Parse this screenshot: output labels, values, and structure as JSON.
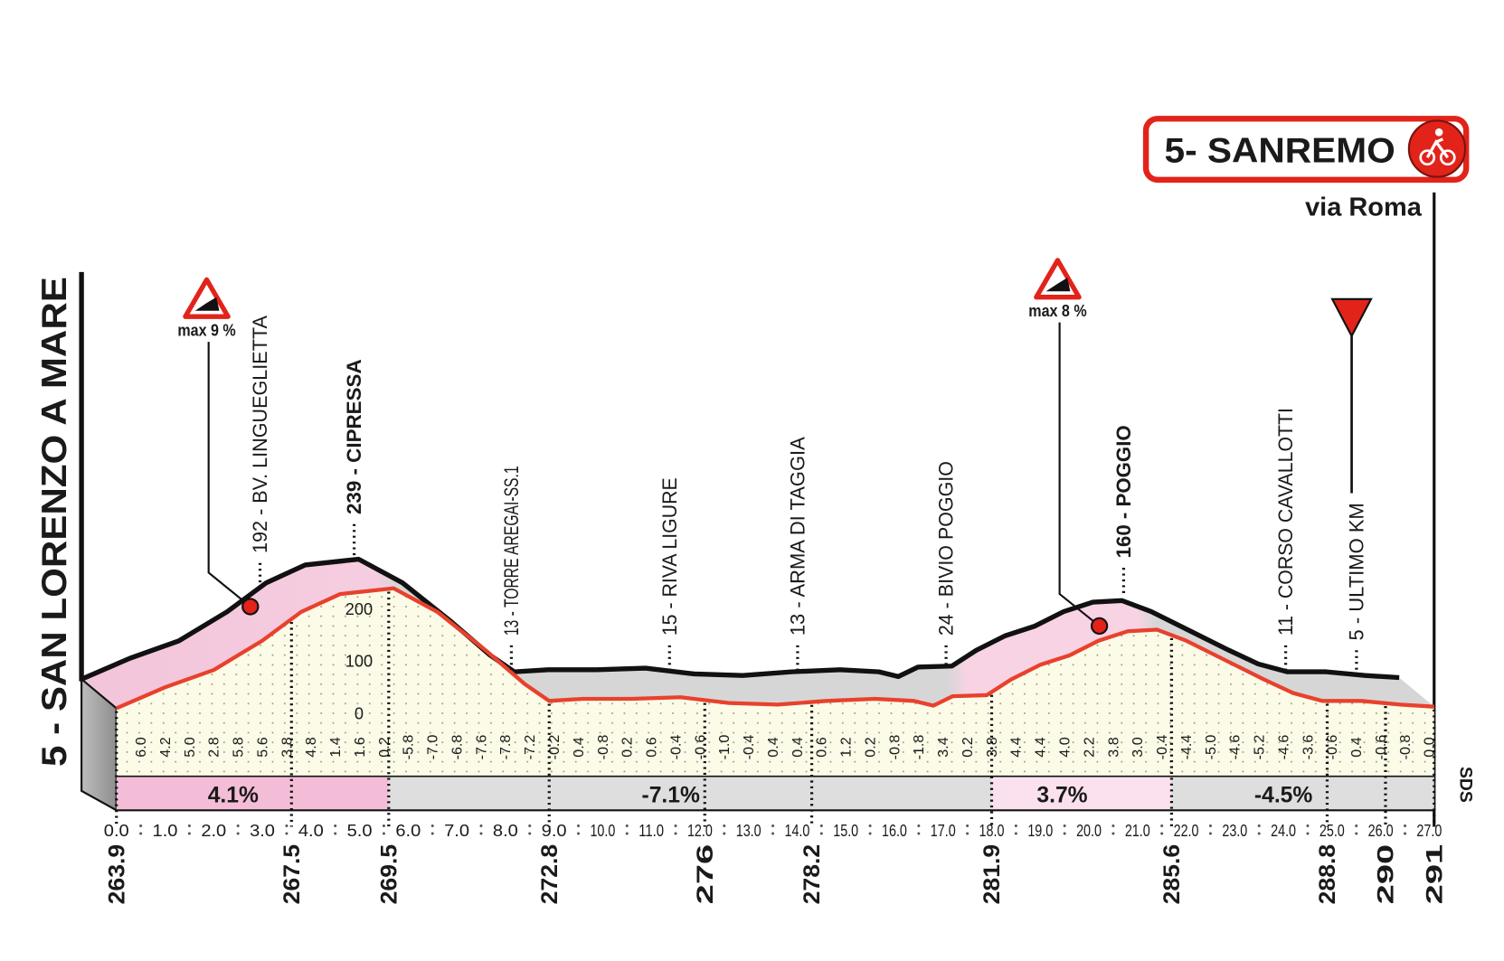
{
  "chart_data": {
    "type": "area",
    "start": "5 - SAN LORENZO A MARE",
    "finish": "5- SANREMO",
    "finish_street": "via Roma",
    "credit": "SDS",
    "x": [
      263.9,
      264.9,
      265.9,
      266.9,
      267.7,
      268.5,
      269.6,
      270.5,
      271.5,
      272.3,
      272.8,
      273.5,
      274.5,
      275.5,
      276.5,
      277.5,
      278.5,
      279.5,
      280.3,
      280.7,
      281.1,
      281.8,
      282.3,
      282.9,
      283.5,
      284.1,
      284.7,
      285.3,
      285.9,
      286.7,
      287.5,
      288.1,
      288.7,
      289.5,
      290.3,
      291.0
    ],
    "values": [
      10,
      50,
      83,
      139,
      194,
      228,
      239,
      194,
      120,
      56,
      24,
      28,
      28,
      31,
      20,
      17,
      24,
      28,
      24,
      15,
      33,
      35,
      65,
      93,
      111,
      139,
      157,
      160,
      139,
      102,
      65,
      39,
      24,
      24,
      17,
      13
    ],
    "line_color": "#e8412c",
    "edge_color": "#111111",
    "xlim": [
      263.9,
      291.0
    ],
    "ylim": [
      -120,
      240
    ],
    "yticks": [
      0,
      100,
      200
    ],
    "xticks": [
      263.9,
      267.5,
      269.5,
      272.8,
      276.0,
      278.2,
      281.9,
      285.6,
      288.8,
      290.0,
      291.0
    ],
    "section_ticks": [
      {
        "value": 263.9,
        "label": "0.0"
      },
      {
        "value": 264.9,
        "label": "1.0"
      },
      {
        "value": 265.9,
        "label": "2.0"
      },
      {
        "value": 266.9,
        "label": "3.0"
      },
      {
        "value": 267.9,
        "label": "4.0"
      },
      {
        "value": 268.9,
        "label": "5.0"
      },
      {
        "value": 269.9,
        "label": "6.0"
      },
      {
        "value": 270.9,
        "label": "7.0"
      },
      {
        "value": 271.9,
        "label": "8.0"
      },
      {
        "value": 272.9,
        "label": "9.0"
      },
      {
        "value": 273.9,
        "label": "10.0"
      },
      {
        "value": 274.9,
        "label": "11.0"
      },
      {
        "value": 275.9,
        "label": "12.0"
      },
      {
        "value": 276.9,
        "label": "13.0"
      },
      {
        "value": 277.9,
        "label": "14.0"
      },
      {
        "value": 278.9,
        "label": "15.0"
      },
      {
        "value": 279.9,
        "label": "16.0"
      },
      {
        "value": 280.9,
        "label": "17.0"
      },
      {
        "value": 281.9,
        "label": "18.0"
      },
      {
        "value": 282.9,
        "label": "19.0"
      },
      {
        "value": 283.9,
        "label": "20.0"
      },
      {
        "value": 284.9,
        "label": "21.0"
      },
      {
        "value": 285.9,
        "label": "22.0"
      },
      {
        "value": 286.9,
        "label": "23.0"
      },
      {
        "value": 287.9,
        "label": "24.0"
      },
      {
        "value": 288.9,
        "label": "25.0"
      },
      {
        "value": 289.9,
        "label": "26.0"
      },
      {
        "value": 290.9,
        "label": "27.0"
      }
    ],
    "waypoints": [
      {
        "label": "192 - BV. LINGUEGLIETTA",
        "bold": false
      },
      {
        "label": "239 - CIPRESSA",
        "bold": true
      },
      {
        "label": "13 - TORRE AREGAI-SS.1",
        "bold": false
      },
      {
        "label": "15 - RIVA LIGURE",
        "bold": false
      },
      {
        "label": "13 - ARMA DI TAGGIA",
        "bold": false
      },
      {
        "label": "24 - BIVIO POGGIO",
        "bold": false
      },
      {
        "label": "160 - POGGIO",
        "bold": true
      },
      {
        "label": "11 - CORSO CAVALLOTTI",
        "bold": false
      },
      {
        "label": "5 - ULTIMO KM",
        "bold": false
      }
    ],
    "climbs": [
      {
        "label": "max 9 %"
      },
      {
        "label": "max 8 %"
      }
    ],
    "gradients": {
      "values": [
        6,
        4.2,
        5,
        2.8,
        5.8,
        5.6,
        3.8,
        4.8,
        1.4,
        1.6,
        0.2,
        -5.8,
        -7,
        -6.8,
        -7.6,
        -7.8,
        -7.2,
        -0.2,
        0.4,
        -0.8,
        0.2,
        0.6,
        -0.4,
        -0.6,
        -1,
        -0.4,
        0.4,
        0.4,
        0.6,
        1.2,
        0.2,
        -0.8,
        -1.8,
        3.4,
        0.2,
        3.8,
        4.4,
        4.4,
        4,
        2.2,
        3.8,
        3,
        -0.4,
        -4.4,
        -5,
        -4.6,
        -5.2,
        -4.6,
        -3.6,
        -0.6,
        0.4,
        -0.6,
        -0.8,
        0
      ],
      "value_labels": [
        "6.0",
        "4.2",
        "5.0",
        "2.8",
        "5.8",
        "5.6",
        "3.8",
        "4.8",
        "1.4",
        "1.6",
        "0.2",
        "-5.8",
        "-7.0",
        "-6.8",
        "-7.6",
        "-7.8",
        "-7.2",
        "-0.2",
        "0.4",
        "-0.8",
        "0.2",
        "0.6",
        "-0.4",
        "-0.6",
        "-1.0",
        "-0.4",
        "0.4",
        "0.4",
        "0.6",
        "1.2",
        "0.2",
        "-0.8",
        "-1.8",
        "3.4",
        "0.2",
        "3.8",
        "4.4",
        "4.4",
        "4.0",
        "2.2",
        "3.8",
        "3.0",
        "-0.4",
        "-4.4",
        "-5.0",
        "-4.6",
        "-5.2",
        "-4.6",
        "-3.6",
        "-0.6",
        "0.4",
        "-0.6",
        "-0.8",
        "0.0"
      ]
    },
    "gradient_bands": [
      {
        "from": 263.9,
        "to": 269.5,
        "value": 4.1,
        "label": "4.1%",
        "color": "#f3bdd8"
      },
      {
        "from": 269.5,
        "to": 281.9,
        "value": -7.1,
        "label": "-7.1%",
        "color": "#dedede"
      },
      {
        "from": 281.9,
        "to": 285.6,
        "value": 3.7,
        "label": "3.7%",
        "color": "#fbe1ee"
      },
      {
        "from": 285.6,
        "to": 291.0,
        "value": -4.5,
        "label": "-4.5%",
        "color": "#dedede"
      }
    ]
  }
}
